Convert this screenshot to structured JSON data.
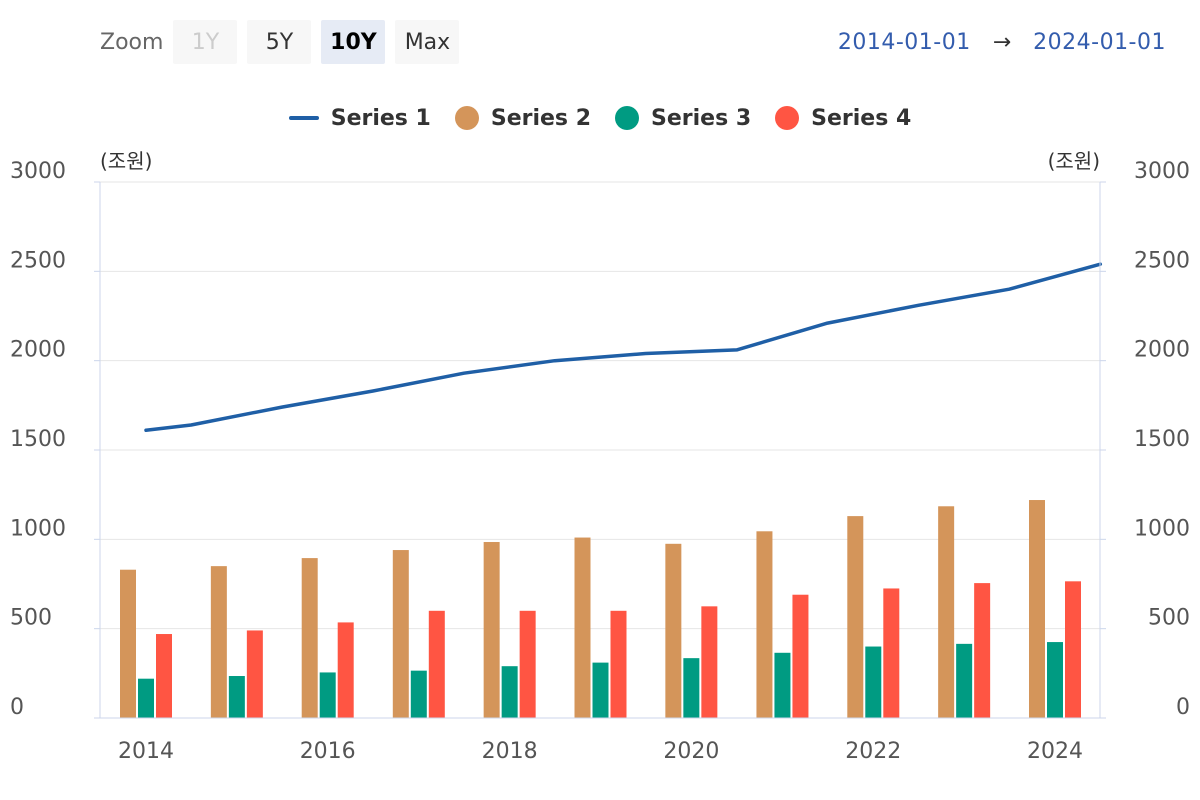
{
  "zoom": {
    "label": "Zoom",
    "buttons": [
      {
        "label": "1Y",
        "state": "disabled"
      },
      {
        "label": "5Y",
        "state": "normal"
      },
      {
        "label": "10Y",
        "state": "active"
      },
      {
        "label": "Max",
        "state": "normal"
      }
    ]
  },
  "range": {
    "from": "2014-01-01",
    "separator": "→",
    "to": "2024-01-01"
  },
  "legend": [
    {
      "name": "Series 1",
      "symbol": "line",
      "color": "#1f5fa6"
    },
    {
      "name": "Series 2",
      "symbol": "dot",
      "color": "#d4955a"
    },
    {
      "name": "Series 3",
      "symbol": "dot",
      "color": "#009b82"
    },
    {
      "name": "Series 4",
      "symbol": "dot",
      "color": "#ff5543"
    }
  ],
  "chart_data": {
    "type": "bar",
    "x_type": "date",
    "x_range": [
      "2014-01-01",
      "2024-01-01"
    ],
    "x_ticks": [
      "2014",
      "2016",
      "2018",
      "2020",
      "2022",
      "2024"
    ],
    "categories": [
      "2014",
      "2015",
      "2016",
      "2017",
      "2018",
      "2019",
      "2020",
      "2021",
      "2022",
      "2023",
      "2024"
    ],
    "y_left": {
      "unit_label": "(조원)",
      "min": 0,
      "max": 3000,
      "ticks": [
        0,
        500,
        1000,
        1500,
        2000,
        2500,
        3000
      ]
    },
    "y_right": {
      "unit_label": "(조원)",
      "min": 0,
      "max": 3000,
      "ticks": [
        0,
        500,
        1000,
        1500,
        2000,
        2500,
        3000
      ]
    },
    "grid": "y",
    "legend_position": "top-center",
    "series": [
      {
        "name": "Series 1",
        "type": "line",
        "color": "#1f5fa6",
        "points": [
          [
            "2014-01-01",
            1610
          ],
          [
            "2014-07-01",
            1640
          ],
          [
            "2015-07-01",
            1740
          ],
          [
            "2016-07-01",
            1830
          ],
          [
            "2017-07-01",
            1930
          ],
          [
            "2018-07-01",
            2000
          ],
          [
            "2019-07-01",
            2040
          ],
          [
            "2020-07-01",
            2060
          ],
          [
            "2021-07-01",
            2210
          ],
          [
            "2022-07-01",
            2310
          ],
          [
            "2023-07-01",
            2400
          ],
          [
            "2024-07-01",
            2540
          ]
        ]
      },
      {
        "name": "Series 2",
        "type": "bar",
        "color": "#d4955a",
        "values": [
          830,
          850,
          895,
          940,
          985,
          1010,
          975,
          1045,
          1130,
          1185,
          1220
        ]
      },
      {
        "name": "Series 3",
        "type": "bar",
        "color": "#009b82",
        "values": [
          220,
          235,
          255,
          265,
          290,
          310,
          335,
          365,
          400,
          415,
          425
        ]
      },
      {
        "name": "Series 4",
        "type": "bar",
        "color": "#ff5543",
        "values": [
          470,
          490,
          535,
          600,
          600,
          600,
          625,
          690,
          725,
          755,
          765
        ]
      }
    ]
  }
}
